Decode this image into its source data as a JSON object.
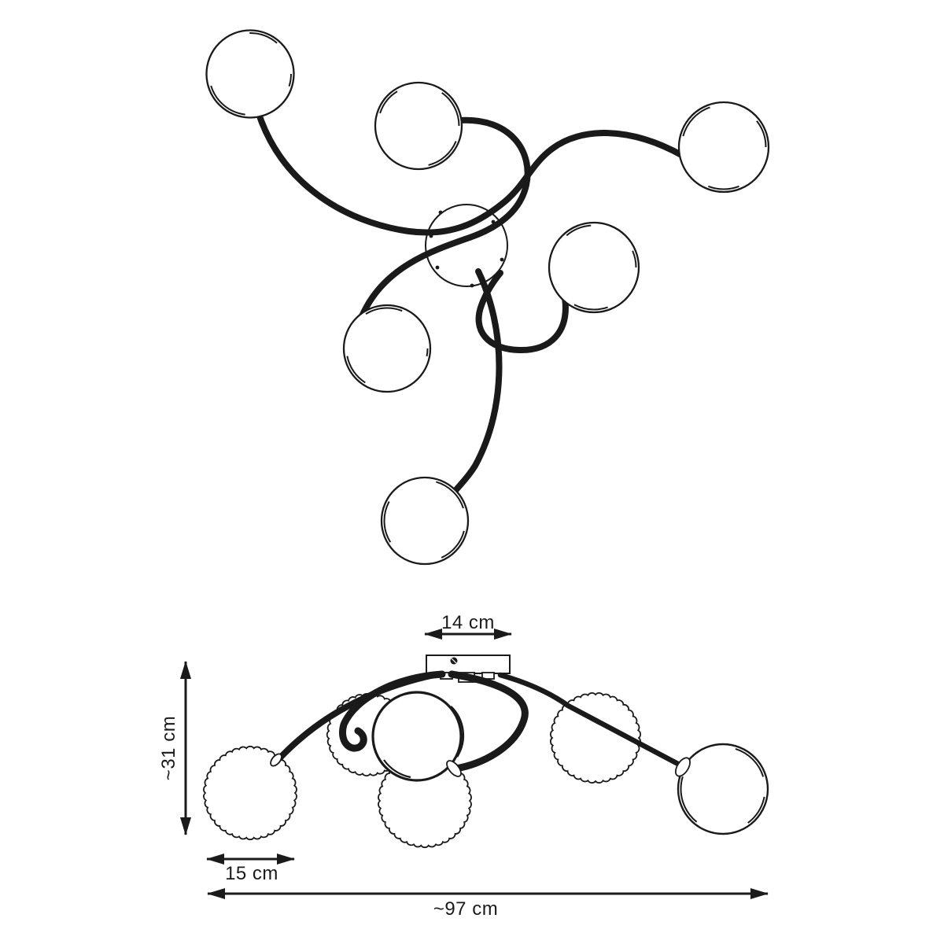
{
  "drawing": {
    "type": "technical-drawing",
    "subject": "6-globe ceiling lamp, top view and side view",
    "style": {
      "line_color": "#1a1a1a",
      "background": "#ffffff"
    },
    "counts": {
      "globes_top_view": 6,
      "globes_side_view": 6
    }
  },
  "dimensions": {
    "canopy_width": "14 cm",
    "fixture_height": "~31 cm",
    "globe_diameter": "15 cm",
    "total_width": "~97 cm"
  }
}
